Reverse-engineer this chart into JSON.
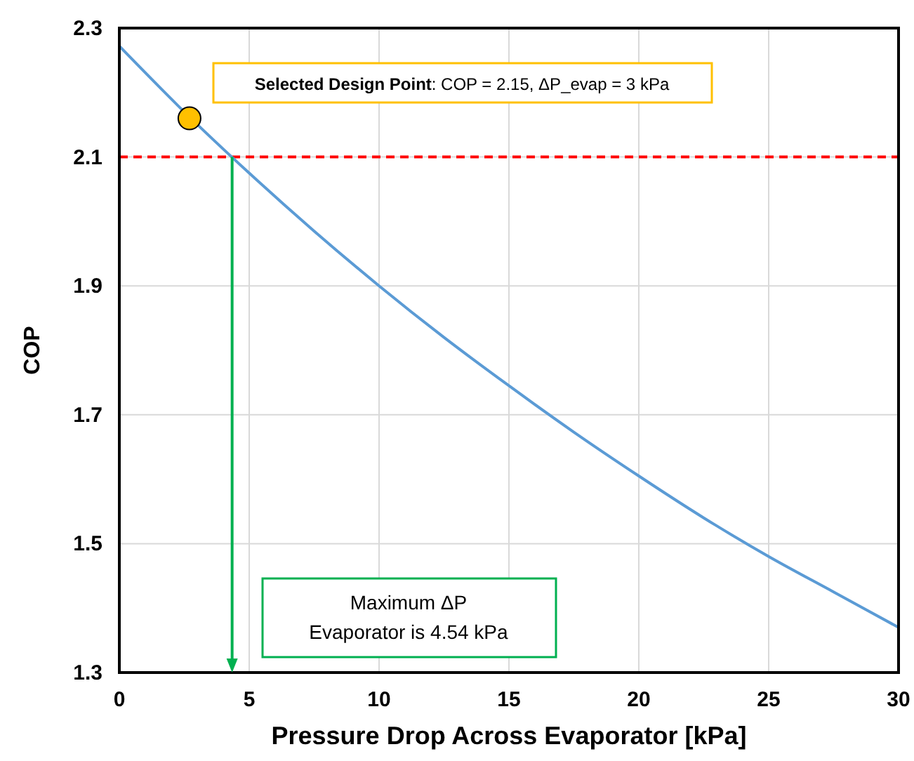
{
  "chart_data": {
    "type": "line",
    "xlabel": "Pressure Drop Across Evaporator [kPa]",
    "ylabel": "COP",
    "xlim": [
      0,
      30
    ],
    "xticks": [
      0,
      5,
      10,
      15,
      20,
      25,
      30
    ],
    "ylim": [
      1.3,
      2.3
    ],
    "yticks": [
      1.3,
      1.5,
      1.7,
      1.9,
      2.1,
      2.3
    ],
    "grid": true,
    "series": [
      {
        "color": "#5b9bd5",
        "marker": "none",
        "x": [
          0,
          2.5,
          5,
          7.5,
          10,
          12.5,
          15,
          17.5,
          20,
          22.5,
          25,
          27.5,
          30
        ],
        "values": [
          2.272,
          2.17,
          2.075,
          1.985,
          1.9,
          1.82,
          1.745,
          1.673,
          1.605,
          1.54,
          1.48,
          1.425,
          1.37
        ]
      },
      {
        "type": "scatter",
        "color": "#ffc000",
        "marker": "circle",
        "x": [
          2.7
        ],
        "values": [
          2.16
        ]
      }
    ],
    "ref_lines": [
      {
        "axis": "y",
        "value": 2.1,
        "color": "#ff0000",
        "line_style": "dashed"
      }
    ],
    "annotations": [
      "Selected Design Point: COP = 2.15, ΔP_evap = 3 kPa",
      "Maximum ΔP\nEvaporator is 4.54 kPa"
    ]
  }
}
